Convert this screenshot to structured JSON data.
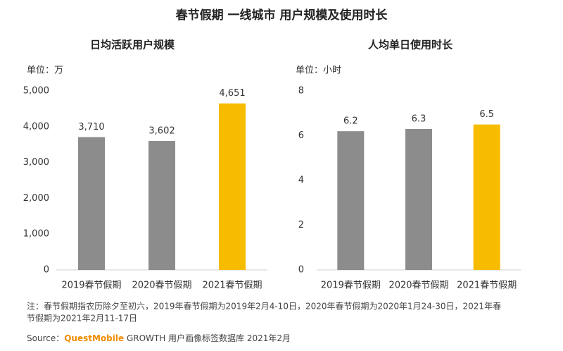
{
  "title": "春节假期 一线城市 用户规模及使用时长",
  "chart_data": [
    {
      "type": "bar",
      "title": "日均活跃用户规模",
      "unit_label": "单位：万",
      "categories": [
        "2019春节假期",
        "2020春节假期",
        "2021春节假期"
      ],
      "values": [
        3710,
        3602,
        4651
      ],
      "value_labels": [
        "3,710",
        "3,602",
        "4,651"
      ],
      "colors": [
        "#8c8c8c",
        "#8c8c8c",
        "#f7bb00"
      ],
      "ylim": [
        0,
        5000
      ],
      "yticks": [
        0,
        {
          "value": 1000,
          "label": "1,000"
        },
        {
          "value": 2000,
          "label": "2,000"
        },
        {
          "value": 3000,
          "label": "3,000"
        },
        {
          "value": 4000,
          "label": "4,000"
        },
        {
          "value": 5000,
          "label": "5,000"
        }
      ]
    },
    {
      "type": "bar",
      "title": "人均单日使用时长",
      "unit_label": "单位：小时",
      "categories": [
        "2019春节假期",
        "2020春节假期",
        "2021春节假期"
      ],
      "values": [
        6.2,
        6.3,
        6.5
      ],
      "colors": [
        "#8c8c8c",
        "#8c8c8c",
        "#f7bb00"
      ],
      "ylim": [
        0,
        8
      ],
      "yticks": [
        0,
        2,
        4,
        6,
        8
      ]
    }
  ],
  "note": [
    "注：春节假期指农历除夕至初六，2019年春节假期为2019年2月4-10日，2020年春节假期为2020年1月24-30日，2021年春",
    "节假期为2021年2月11-17日"
  ],
  "source": {
    "prefix": "Source：",
    "brand": "QuestMobile",
    "rest": " GROWTH 用户画像标签数据库 2021年2月"
  }
}
